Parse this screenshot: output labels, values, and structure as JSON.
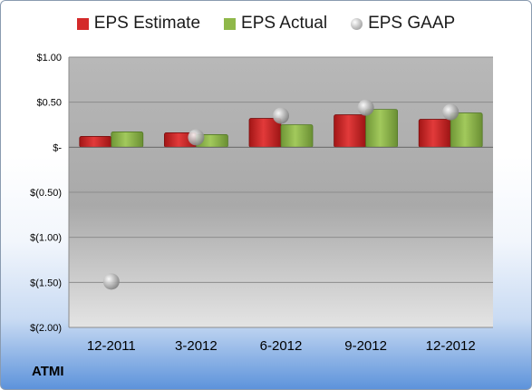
{
  "chart_data": {
    "type": "bar",
    "title": "",
    "categories": [
      "12-2011",
      "3-2012",
      "6-2012",
      "9-2012",
      "12-2012"
    ],
    "series": [
      {
        "name": "EPS Estimate",
        "kind": "bar",
        "values": [
          0.12,
          0.16,
          0.32,
          0.36,
          0.31
        ],
        "color": "#d42a2a"
      },
      {
        "name": "EPS Actual",
        "kind": "bar",
        "values": [
          0.17,
          0.14,
          0.25,
          0.42,
          0.38
        ],
        "color": "#8fb84a"
      },
      {
        "name": "EPS GAAP",
        "kind": "marker",
        "values": [
          -1.49,
          0.11,
          0.35,
          0.44,
          0.39
        ],
        "color": "#a0a0a0"
      }
    ],
    "ylim": [
      -2.0,
      1.0
    ],
    "yticks": [
      1.0,
      0.5,
      0.0,
      -0.5,
      -1.0,
      -1.5,
      -2.0
    ],
    "ytick_labels": [
      "$1.00",
      "$0.50",
      "$-",
      "$(0.50)",
      "$(1.00)",
      "$(1.50)",
      "$(2.00)"
    ],
    "grid": true,
    "legend": "top"
  },
  "footer": {
    "ticker": "ATMI"
  }
}
